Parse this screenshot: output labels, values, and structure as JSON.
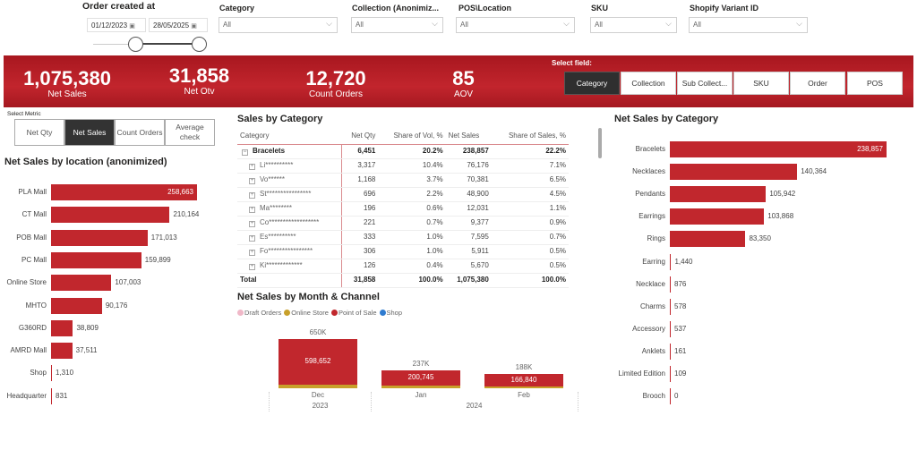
{
  "filters": {
    "date": {
      "label": "Order created at",
      "start": "01/12/2023",
      "end": "28/05/2025"
    },
    "dropdowns": [
      {
        "label": "Category",
        "value": "All"
      },
      {
        "label": "Collection (Anonimiz...",
        "value": "All"
      },
      {
        "label": "POS\\Location",
        "value": "All"
      },
      {
        "label": "SKU",
        "value": "All"
      },
      {
        "label": "Shopify Variant ID",
        "value": "All"
      }
    ]
  },
  "kpis": [
    {
      "value": "1,075,380",
      "label": "Net Sales"
    },
    {
      "value": "31,858",
      "label": "Net Otv"
    },
    {
      "value": "12,720",
      "label": "Count Orders"
    },
    {
      "value": "85",
      "label": "AOV"
    }
  ],
  "field_selector": {
    "label": "Select field:",
    "options": [
      "Category",
      "Collection",
      "Sub Collect...",
      "SKU",
      "Order",
      "POS"
    ],
    "selected": "Category"
  },
  "metric_selector": {
    "label": "Select Metric",
    "options": [
      "Net Qty",
      "Net Sales",
      "Count Orders",
      "Average check"
    ],
    "selected": "Net Sales"
  },
  "colors": {
    "accent": "#c1272d",
    "banner": "#b01e26",
    "online_store": "#c8a02a",
    "draft": "#f0b8c8",
    "shop": "#2f7bd0"
  },
  "location_chart": {
    "title": "Net Sales by location (anonimized)",
    "type": "bar",
    "categories": [
      "PLA Mall",
      "CT Mall",
      "POB Mall",
      "PC Mall",
      "Online Store",
      "MHTO",
      "G360RD",
      "AMRD Mall",
      "Shop",
      "Headquarter"
    ],
    "values": [
      258663,
      210164,
      171013,
      159899,
      107003,
      90176,
      38809,
      37511,
      1310,
      831
    ],
    "labels": [
      "258,663",
      "210,164",
      "171,013",
      "159,899",
      "107,003",
      "90,176",
      "38,809",
      "37,511",
      "1,310",
      "831"
    ]
  },
  "table": {
    "title": "Sales by Category",
    "columns": [
      "Category",
      "Net Qty",
      "Share of Vol, %",
      "Net Sales",
      "Share of Sales, %"
    ],
    "group": [
      "Bracelets",
      "6,451",
      "20.2%",
      "238,857",
      "22.2%"
    ],
    "rows": [
      [
        "Li**********",
        "3,317",
        "10.4%",
        "76,176",
        "7.1%"
      ],
      [
        "Vo******",
        "1,168",
        "3.7%",
        "70,381",
        "6.5%"
      ],
      [
        "St****************",
        "696",
        "2.2%",
        "48,900",
        "4.5%"
      ],
      [
        "Ma********",
        "196",
        "0.6%",
        "12,031",
        "1.1%"
      ],
      [
        "Co******************",
        "221",
        "0.7%",
        "9,377",
        "0.9%"
      ],
      [
        "Es**********",
        "333",
        "1.0%",
        "7,595",
        "0.7%"
      ],
      [
        "Fo****************",
        "306",
        "1.0%",
        "5,911",
        "0.5%"
      ],
      [
        "Ki*************",
        "126",
        "0.4%",
        "5,670",
        "0.5%"
      ]
    ],
    "total": [
      "Total",
      "31,858",
      "100.0%",
      "1,075,380",
      "100.0%"
    ]
  },
  "month_chart": {
    "title": "Net Sales by Month & Channel",
    "type": "bar",
    "legend": [
      "Draft Orders",
      "Online Store",
      "Point of Sale",
      "Shop"
    ],
    "months": [
      {
        "month": "Dec",
        "year": "2023",
        "total": 650000,
        "total_label": "650K",
        "pos": 598652,
        "pos_label": "598,652"
      },
      {
        "month": "Jan",
        "year": "2024",
        "total": 237000,
        "total_label": "237K",
        "pos": 200745,
        "pos_label": "200,745"
      },
      {
        "month": "Feb",
        "year": "2024",
        "total": 188000,
        "total_label": "188K",
        "pos": 166840,
        "pos_label": "166,840"
      }
    ],
    "year_labels": [
      "2023",
      "2024"
    ]
  },
  "category_chart": {
    "title": "Net Sales by Category",
    "type": "bar",
    "categories": [
      "Bracelets",
      "Necklaces",
      "Pendants",
      "Earrings",
      "Rings",
      "Earring",
      "Necklace",
      "Charms",
      "Accessory",
      "Anklets",
      "Limited Edition",
      "Brooch"
    ],
    "values": [
      238857,
      140364,
      105942,
      103868,
      83350,
      1440,
      876,
      578,
      537,
      161,
      109,
      0
    ],
    "labels": [
      "238,857",
      "140,364",
      "105,942",
      "103,868",
      "83,350",
      "1,440",
      "876",
      "578",
      "537",
      "161",
      "109",
      "0"
    ]
  }
}
